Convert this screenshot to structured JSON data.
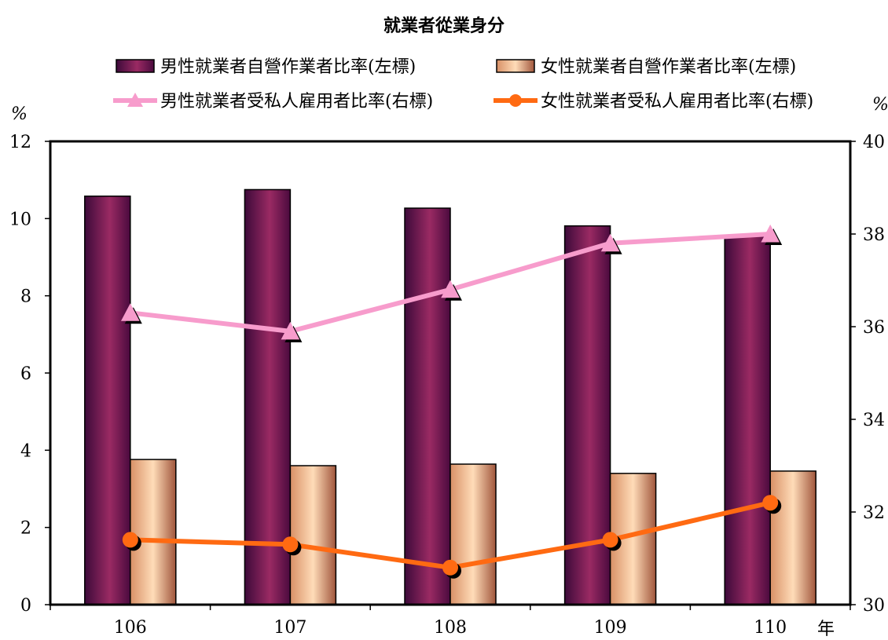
{
  "chart_data": {
    "type": "bar",
    "title": "就業者從業身分",
    "categories": [
      "106",
      "107",
      "108",
      "109",
      "110"
    ],
    "xlabel": "年",
    "ylabel_left": "%",
    "ylabel_right": "%",
    "ylim_left": [
      0,
      12
    ],
    "ylim_right": [
      30,
      40
    ],
    "yticks_left": [
      "0",
      "2",
      "4",
      "6",
      "8",
      "10",
      "12"
    ],
    "yticks_right": [
      "30",
      "32",
      "34",
      "36",
      "38",
      "40"
    ],
    "grid": false,
    "legend_position": "top",
    "series": [
      {
        "name": "男性就業者自營作業者比率(左標)",
        "type": "bar",
        "axis": "left",
        "color": "#7a1a52",
        "values": [
          10.58,
          10.75,
          10.27,
          9.81,
          9.55
        ]
      },
      {
        "name": "女性就業者自營作業者比率(左標)",
        "type": "bar",
        "axis": "left",
        "color": "#f3c199",
        "values": [
          3.76,
          3.6,
          3.64,
          3.4,
          3.46
        ]
      },
      {
        "name": "男性就業者受私人雇用者比率(右標)",
        "type": "line",
        "axis": "right",
        "color": "#f79ccc",
        "marker": "triangle",
        "values": [
          36.3,
          35.9,
          36.8,
          37.8,
          38.0
        ]
      },
      {
        "name": "女性就業者受私人雇用者比率(右標)",
        "type": "line",
        "axis": "right",
        "color": "#ff6a12",
        "marker": "circle",
        "values": [
          31.4,
          31.3,
          30.8,
          31.4,
          32.2
        ]
      }
    ]
  }
}
